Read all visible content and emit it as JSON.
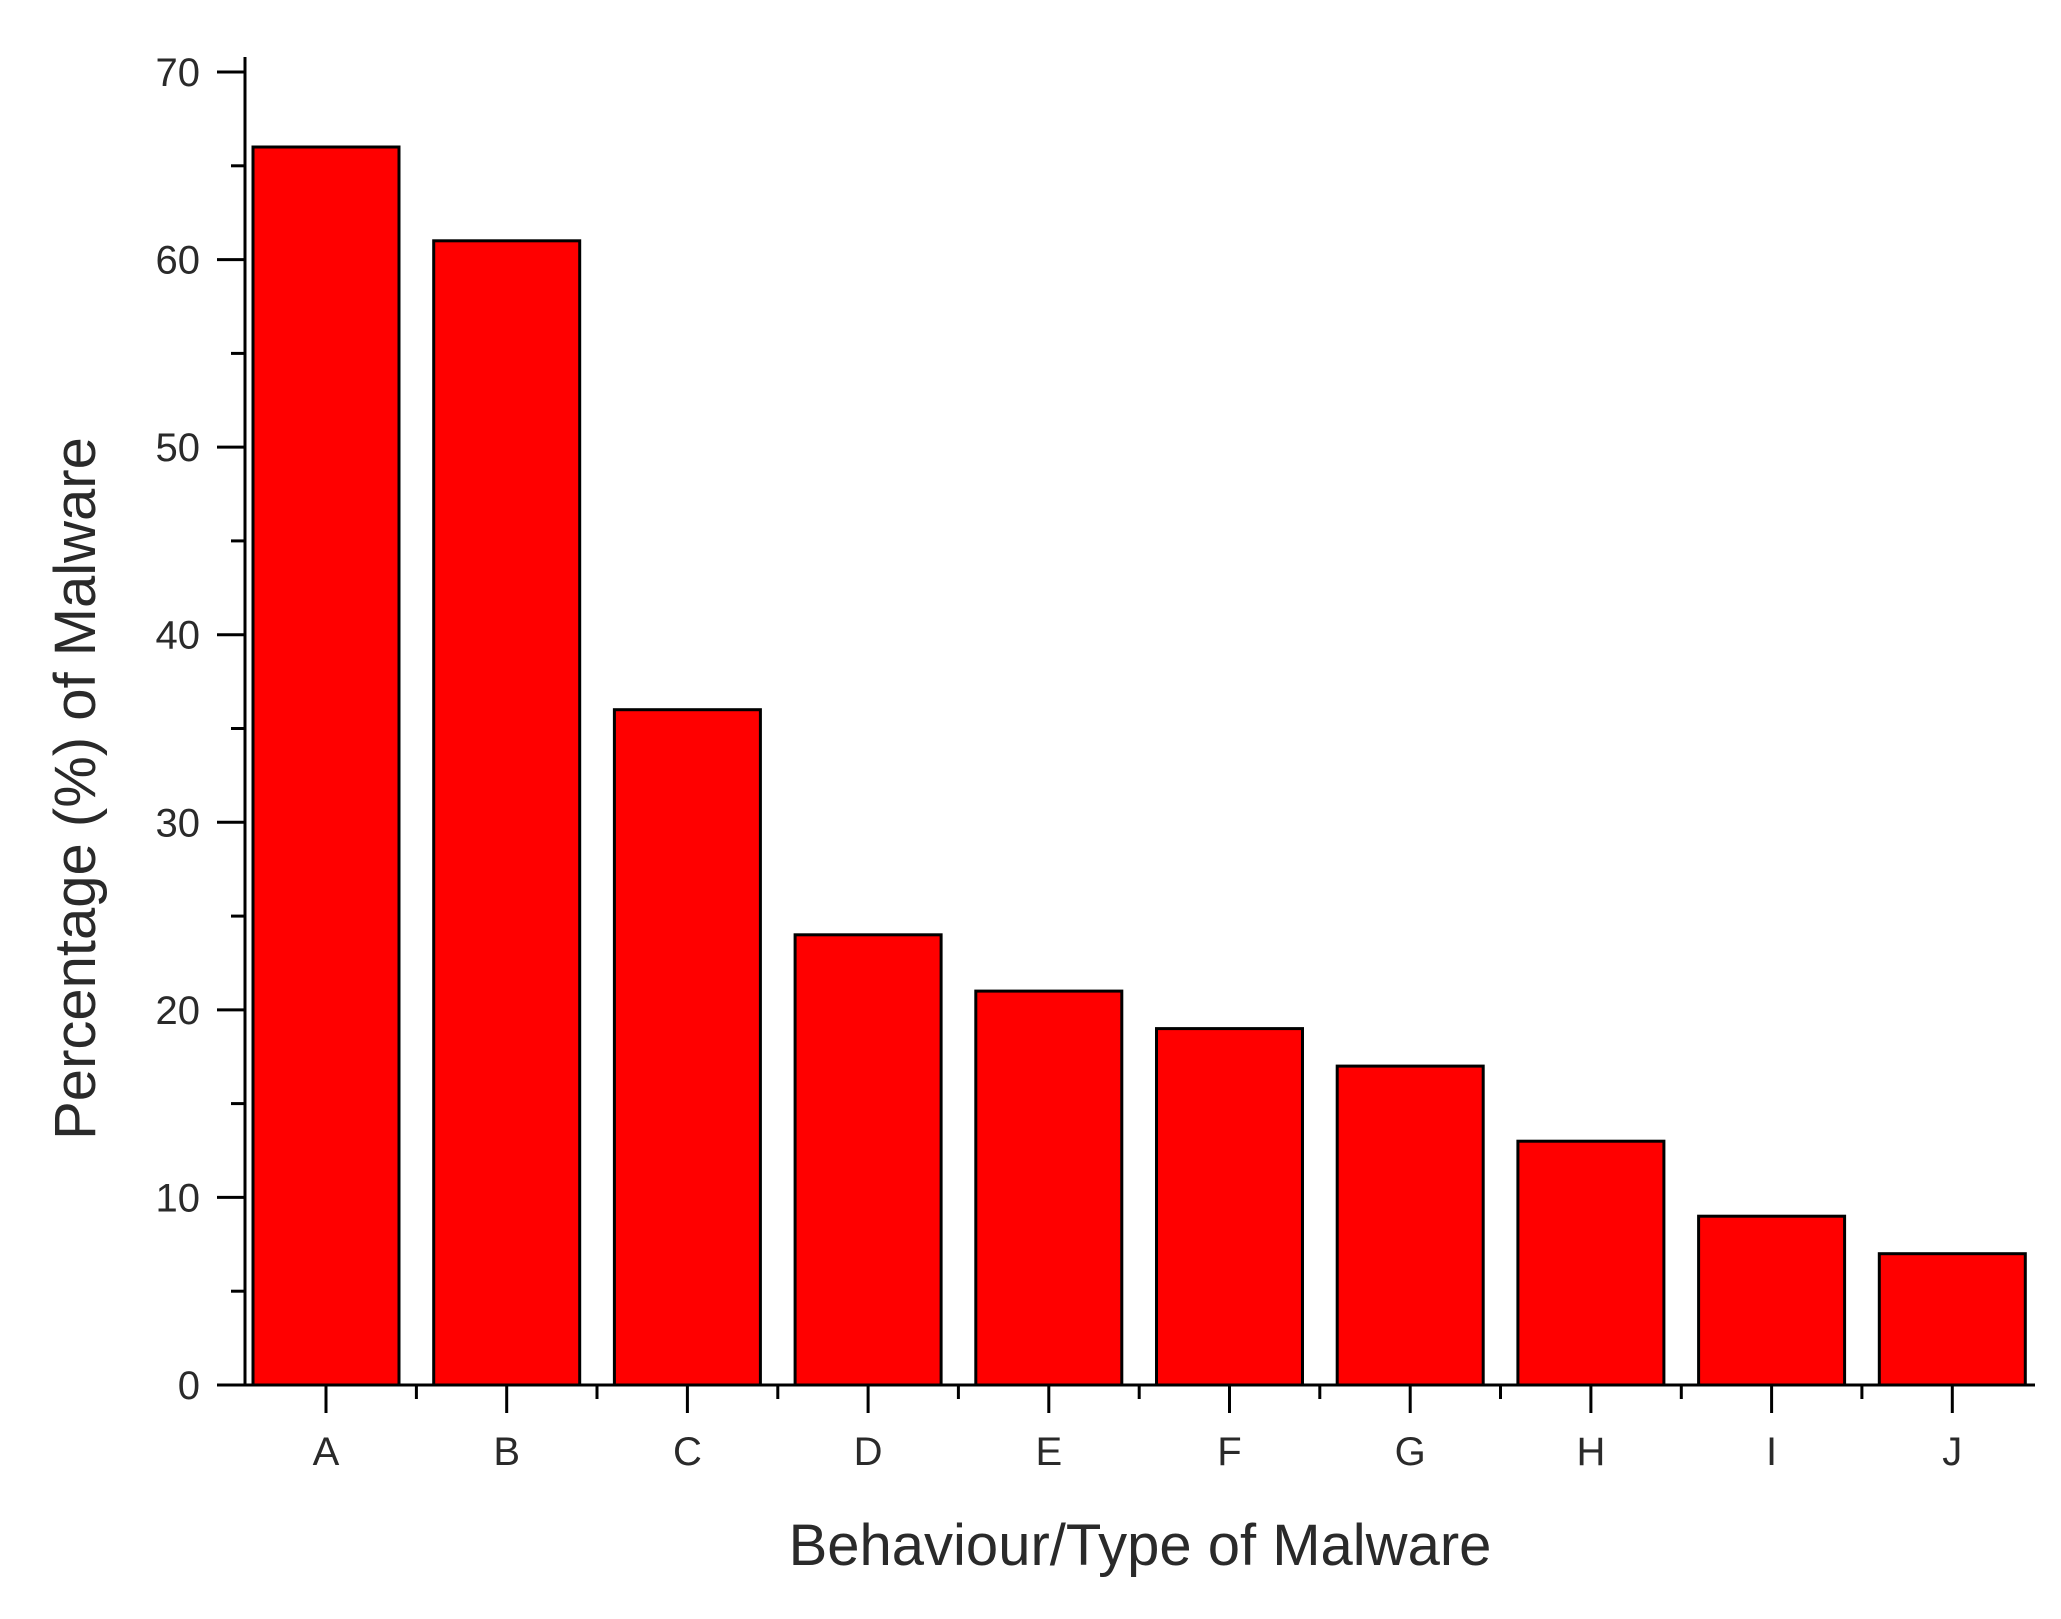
{
  "chart_data": {
    "type": "bar",
    "categories": [
      "A",
      "B",
      "C",
      "D",
      "E",
      "F",
      "G",
      "H",
      "I",
      "J"
    ],
    "values": [
      66,
      61,
      36,
      24,
      21,
      19,
      17,
      13,
      9,
      7
    ],
    "xlabel": "Behaviour/Type of Malware",
    "ylabel": "Percentage (%) of Malware",
    "ylim": [
      0,
      70
    ],
    "yticks": [
      0,
      10,
      20,
      30,
      40,
      50,
      60,
      70
    ],
    "y_minor_step": 5,
    "grid": false,
    "legend": "none",
    "bar_color": "#ff0000",
    "bar_edge_color": "#000000"
  }
}
